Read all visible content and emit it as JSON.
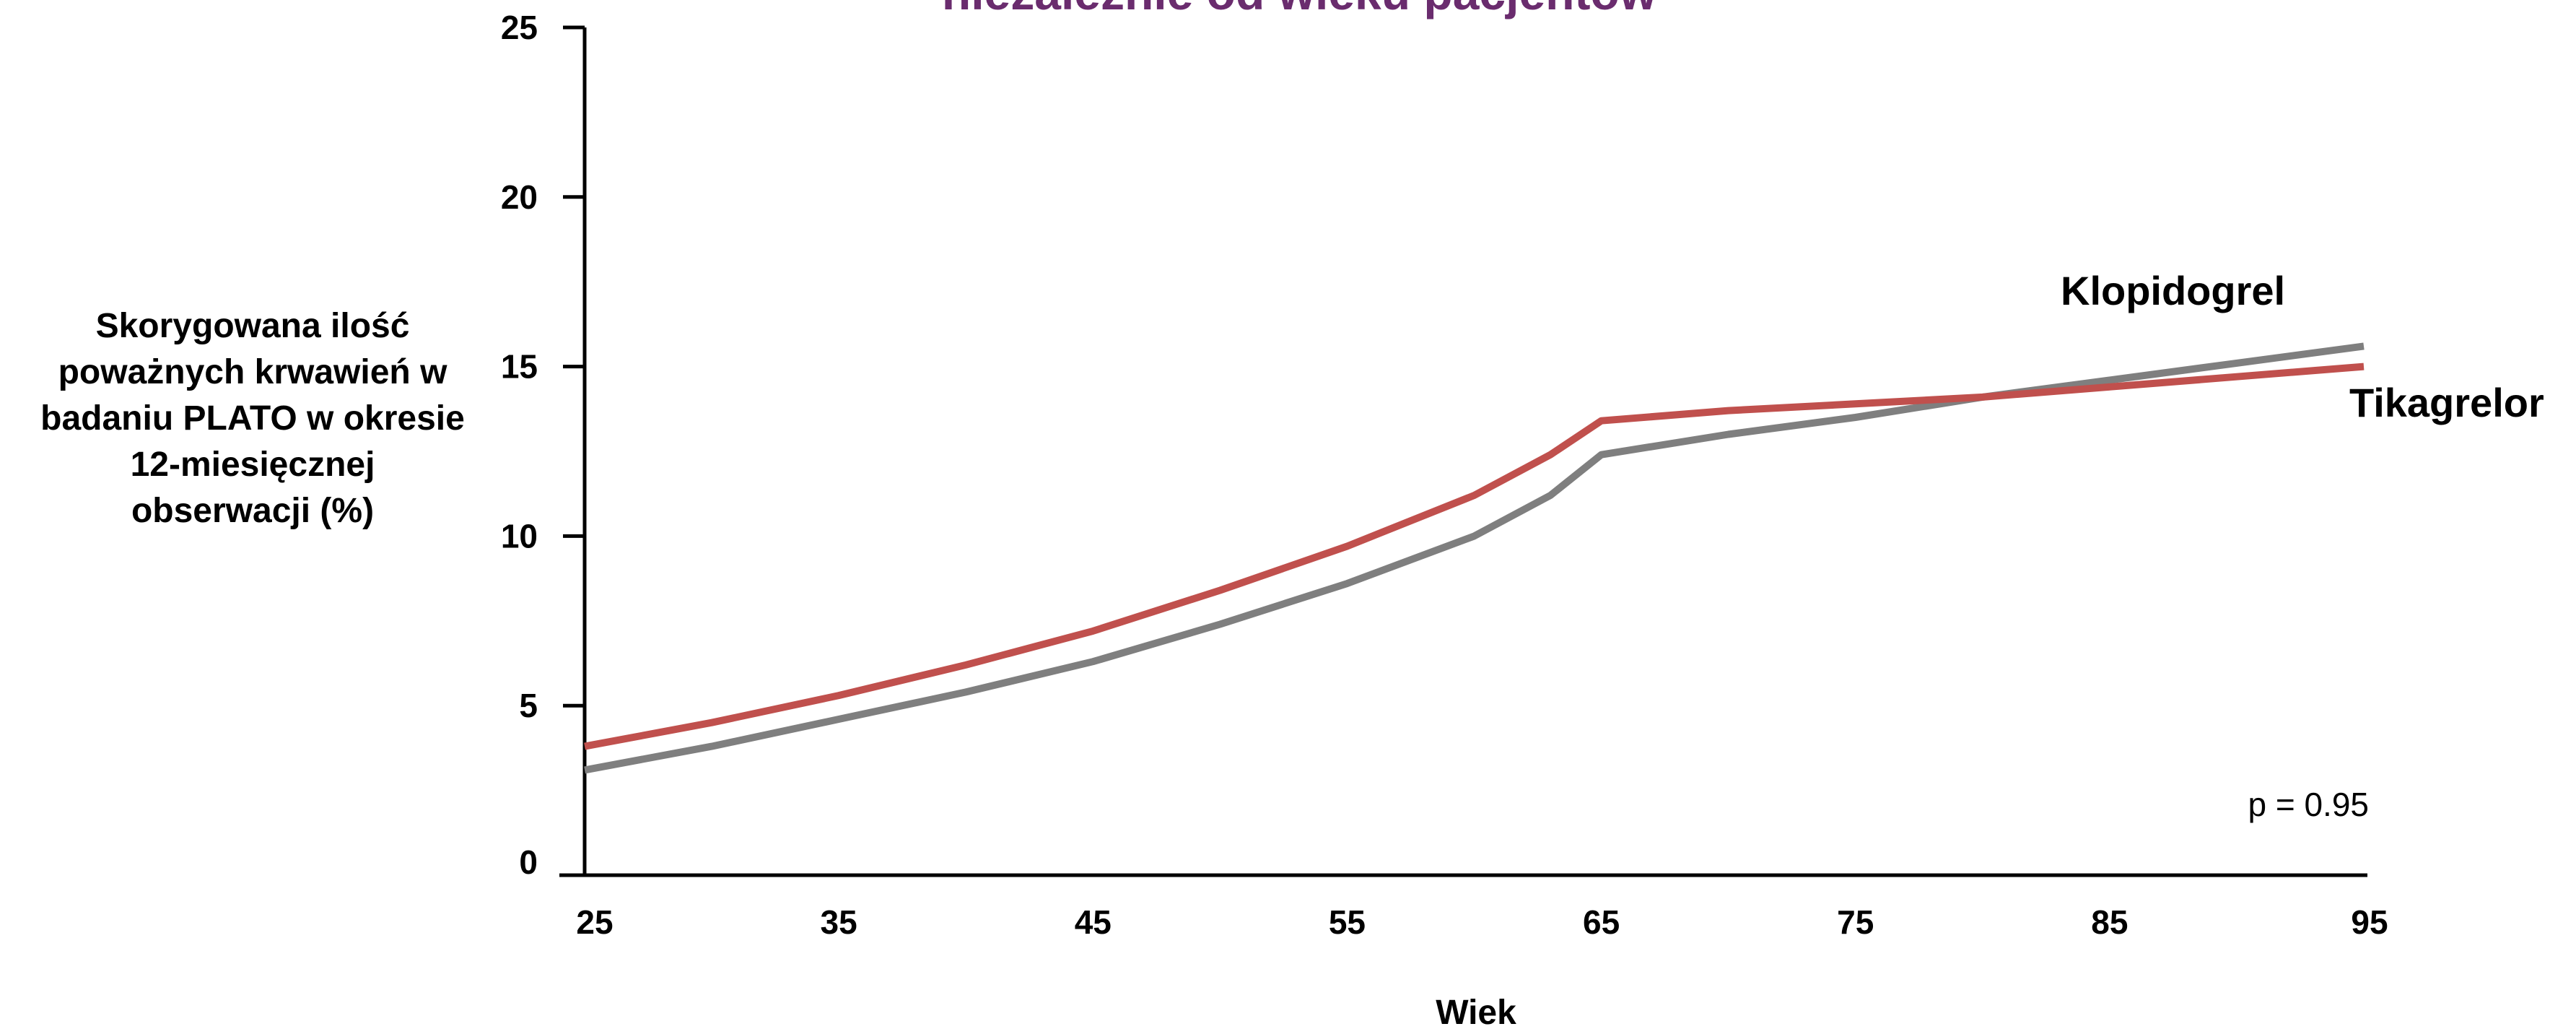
{
  "title": "niezależnie od wieku pacjentów",
  "chart_data": {
    "type": "line",
    "xlabel": "Wiek",
    "ylabel_lines": [
      "Skorygowana ilość",
      "poważnych krwawień w",
      "badaniu PLATO w okresie",
      "12-miesięcznej",
      "obserwacji (%)"
    ],
    "xlim": [
      25,
      95
    ],
    "ylim": [
      0,
      25
    ],
    "x_ticks": [
      25,
      35,
      45,
      55,
      65,
      75,
      85,
      95
    ],
    "y_ticks": [
      0,
      5,
      10,
      15,
      20,
      25
    ],
    "annotation": "p = 0.95",
    "series": [
      {
        "name": "Klopidogrel",
        "color": "#7f7f7f",
        "x": [
          25,
          30,
          35,
          40,
          45,
          50,
          55,
          60,
          63,
          65,
          70,
          75,
          80,
          85,
          90,
          95
        ],
        "y": [
          3.1,
          3.8,
          4.6,
          5.4,
          6.3,
          7.4,
          8.6,
          10.0,
          11.2,
          12.4,
          13.0,
          13.5,
          14.1,
          14.6,
          15.1,
          15.6
        ]
      },
      {
        "name": "Tikagrelor",
        "color": "#c0504d",
        "x": [
          25,
          30,
          35,
          40,
          45,
          50,
          55,
          60,
          63,
          65,
          70,
          75,
          80,
          85,
          90,
          95
        ],
        "y": [
          3.8,
          4.5,
          5.3,
          6.2,
          7.2,
          8.4,
          9.7,
          11.2,
          12.4,
          13.4,
          13.7,
          13.9,
          14.1,
          14.4,
          14.7,
          15.0
        ]
      }
    ]
  }
}
